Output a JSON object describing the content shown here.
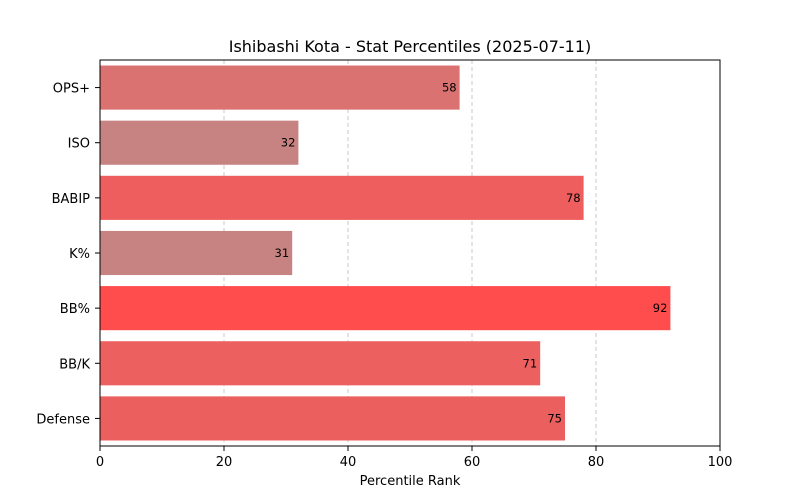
{
  "chart_data": {
    "type": "bar",
    "orientation": "horizontal",
    "title": "Ishibashi Kota - Stat Percentiles (2025-07-11)",
    "xlabel": "Percentile Rank",
    "ylabel": "",
    "xlim": [
      0,
      100
    ],
    "x_ticks": [
      "0",
      "20",
      "40",
      "60",
      "80",
      "100"
    ],
    "grid": "vertical dashed",
    "categories": [
      "OPS+",
      "ISO",
      "BABIP",
      "K%",
      "BB%",
      "BB/K",
      "Defense"
    ],
    "values": [
      58,
      32,
      78,
      31,
      92,
      71,
      75
    ],
    "value_labels": [
      "58",
      "32",
      "78",
      "31",
      "92",
      "71",
      "75"
    ],
    "colors": [
      "#d97270",
      "#c78381",
      "#ee5e5e",
      "#c78381",
      "#ff4c4c",
      "#ed6060",
      "#ec5f5f"
    ]
  }
}
